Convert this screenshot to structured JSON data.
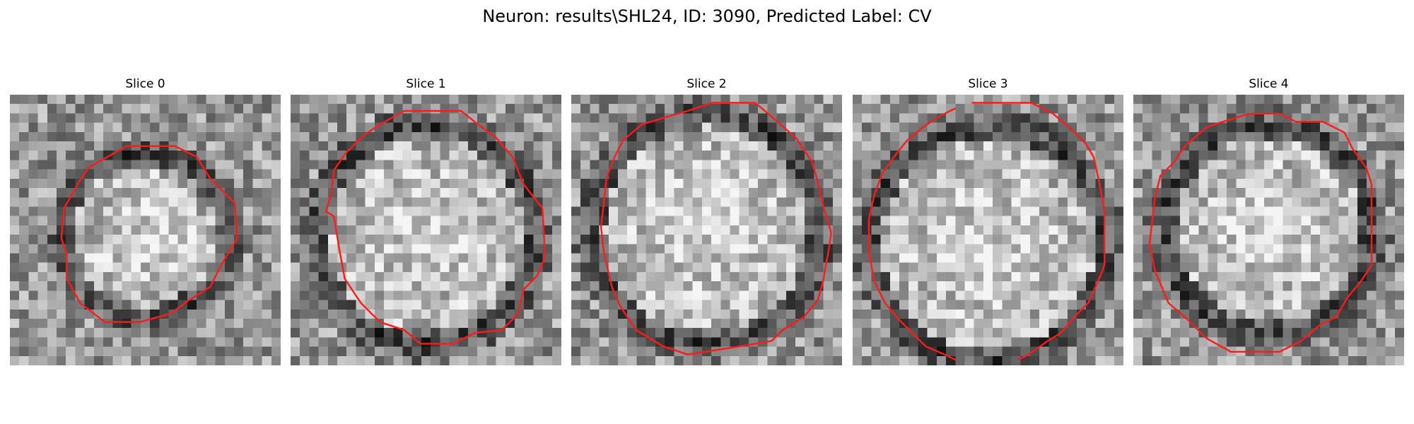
{
  "figure": {
    "title": "Neuron: results\\SHL24, ID: 3090, Predicted Label: CV"
  },
  "colors": {
    "contour": "#ff1a1a",
    "background": "#ffffff"
  },
  "slices": [
    {
      "label": "Slice 0",
      "icon": "grayscale-microscopy-slice-with-red-contour",
      "cellRadius": 0.3,
      "cellCx": 0.5,
      "cellCy": 0.52,
      "seed": 11,
      "contour": [
        [
          0.43,
          0.19
        ],
        [
          0.61,
          0.19
        ],
        [
          0.69,
          0.23
        ],
        [
          0.74,
          0.31
        ],
        [
          0.83,
          0.4
        ],
        [
          0.84,
          0.53
        ],
        [
          0.78,
          0.63
        ],
        [
          0.74,
          0.71
        ],
        [
          0.66,
          0.76
        ],
        [
          0.59,
          0.81
        ],
        [
          0.48,
          0.84
        ],
        [
          0.35,
          0.84
        ],
        [
          0.26,
          0.77
        ],
        [
          0.21,
          0.68
        ],
        [
          0.21,
          0.59
        ],
        [
          0.19,
          0.53
        ],
        [
          0.2,
          0.42
        ],
        [
          0.25,
          0.33
        ],
        [
          0.29,
          0.27
        ],
        [
          0.36,
          0.23
        ]
      ]
    },
    {
      "label": "Slice 1",
      "icon": "grayscale-microscopy-slice-with-red-contour",
      "cellRadius": 0.4,
      "cellCx": 0.5,
      "cellCy": 0.52,
      "seed": 23,
      "contour": [
        [
          0.42,
          0.06
        ],
        [
          0.63,
          0.06
        ],
        [
          0.68,
          0.1
        ],
        [
          0.76,
          0.16
        ],
        [
          0.82,
          0.23
        ],
        [
          0.86,
          0.33
        ],
        [
          0.93,
          0.42
        ],
        [
          0.94,
          0.6
        ],
        [
          0.91,
          0.67
        ],
        [
          0.86,
          0.72
        ],
        [
          0.84,
          0.81
        ],
        [
          0.78,
          0.87
        ],
        [
          0.68,
          0.88
        ],
        [
          0.6,
          0.92
        ],
        [
          0.48,
          0.92
        ],
        [
          0.42,
          0.87
        ],
        [
          0.33,
          0.84
        ],
        [
          0.26,
          0.77
        ],
        [
          0.2,
          0.68
        ],
        [
          0.18,
          0.57
        ],
        [
          0.16,
          0.45
        ],
        [
          0.13,
          0.43
        ],
        [
          0.15,
          0.37
        ],
        [
          0.16,
          0.28
        ],
        [
          0.2,
          0.22
        ],
        [
          0.27,
          0.15
        ],
        [
          0.33,
          0.11
        ]
      ]
    },
    {
      "label": "Slice 2",
      "icon": "grayscale-microscopy-slice-with-red-contour",
      "cellRadius": 0.42,
      "cellCx": 0.5,
      "cellCy": 0.5,
      "seed": 37,
      "contour": [
        [
          0.36,
          0.08
        ],
        [
          0.43,
          0.06
        ],
        [
          0.52,
          0.03
        ],
        [
          0.68,
          0.03
        ],
        [
          0.75,
          0.09
        ],
        [
          0.83,
          0.16
        ],
        [
          0.89,
          0.25
        ],
        [
          0.91,
          0.32
        ],
        [
          0.93,
          0.41
        ],
        [
          0.96,
          0.51
        ],
        [
          0.95,
          0.58
        ],
        [
          0.94,
          0.63
        ],
        [
          0.93,
          0.69
        ],
        [
          0.91,
          0.76
        ],
        [
          0.86,
          0.82
        ],
        [
          0.78,
          0.87
        ],
        [
          0.74,
          0.91
        ],
        [
          0.62,
          0.93
        ],
        [
          0.43,
          0.96
        ],
        [
          0.34,
          0.93
        ],
        [
          0.24,
          0.87
        ],
        [
          0.18,
          0.78
        ],
        [
          0.15,
          0.71
        ],
        [
          0.12,
          0.58
        ],
        [
          0.11,
          0.49
        ],
        [
          0.12,
          0.4
        ],
        [
          0.13,
          0.31
        ],
        [
          0.16,
          0.23
        ],
        [
          0.19,
          0.17
        ],
        [
          0.26,
          0.11
        ]
      ]
    },
    {
      "label": "Slice 3",
      "icon": "grayscale-microscopy-slice-with-red-contour",
      "cellRadius": 0.43,
      "cellCx": 0.5,
      "cellCy": 0.55,
      "seed": 41,
      "contour": [
        [
          0.44,
          0.03
        ],
        [
          0.66,
          0.03
        ],
        [
          0.74,
          0.07
        ],
        [
          0.81,
          0.13
        ],
        [
          0.86,
          0.18
        ],
        [
          0.89,
          0.23
        ],
        [
          0.91,
          0.32
        ],
        [
          0.93,
          0.43
        ],
        [
          0.93,
          0.63
        ],
        [
          0.91,
          0.68
        ],
        [
          0.87,
          0.77
        ],
        [
          0.82,
          0.82
        ],
        [
          0.77,
          0.88
        ],
        [
          0.72,
          0.91
        ],
        [
          0.65,
          0.96
        ],
        [
          0.61,
          0.98
        ]
      ],
      "contour2": [
        [
          0.38,
          0.98
        ],
        [
          0.34,
          0.96
        ],
        [
          0.27,
          0.93
        ],
        [
          0.22,
          0.88
        ],
        [
          0.17,
          0.83
        ],
        [
          0.12,
          0.77
        ],
        [
          0.08,
          0.69
        ],
        [
          0.06,
          0.58
        ],
        [
          0.06,
          0.46
        ],
        [
          0.08,
          0.37
        ],
        [
          0.11,
          0.29
        ],
        [
          0.16,
          0.22
        ],
        [
          0.2,
          0.17
        ],
        [
          0.26,
          0.12
        ],
        [
          0.32,
          0.08
        ],
        [
          0.38,
          0.05
        ]
      ]
    },
    {
      "label": "Slice 4",
      "icon": "grayscale-microscopy-slice-with-red-contour",
      "cellRadius": 0.38,
      "cellCx": 0.5,
      "cellCy": 0.5,
      "seed": 53,
      "contour": [
        [
          0.43,
          0.07
        ],
        [
          0.54,
          0.07
        ],
        [
          0.6,
          0.1
        ],
        [
          0.7,
          0.1
        ],
        [
          0.78,
          0.14
        ],
        [
          0.81,
          0.2
        ],
        [
          0.86,
          0.27
        ],
        [
          0.88,
          0.33
        ],
        [
          0.88,
          0.63
        ],
        [
          0.84,
          0.69
        ],
        [
          0.79,
          0.75
        ],
        [
          0.75,
          0.82
        ],
        [
          0.69,
          0.85
        ],
        [
          0.62,
          0.91
        ],
        [
          0.54,
          0.95
        ],
        [
          0.36,
          0.95
        ],
        [
          0.27,
          0.9
        ],
        [
          0.2,
          0.83
        ],
        [
          0.13,
          0.77
        ],
        [
          0.08,
          0.65
        ],
        [
          0.06,
          0.55
        ],
        [
          0.08,
          0.38
        ],
        [
          0.1,
          0.3
        ],
        [
          0.15,
          0.25
        ],
        [
          0.19,
          0.19
        ],
        [
          0.27,
          0.12
        ],
        [
          0.33,
          0.1
        ]
      ]
    }
  ]
}
